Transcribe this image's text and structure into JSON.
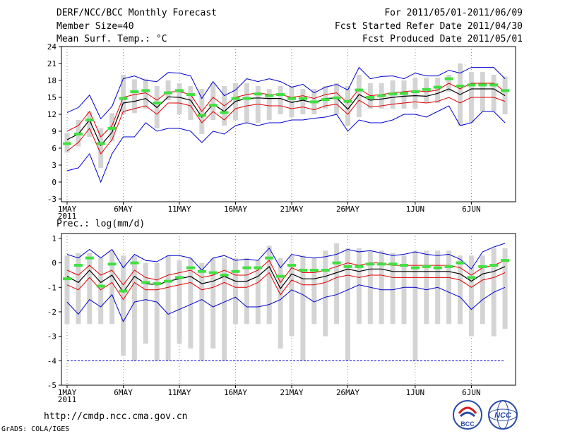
{
  "header": {
    "title": "DERF/NCC/BCC Monthly Forecast",
    "member_size": "Member Size=40",
    "variable": "Mean Surf. Temp.: °C",
    "period": "For 2011/05/01-2011/06/09",
    "refer_date": "Fcst Started Refer Date 2011/04/30",
    "produced_date": "Fcst Produced Date 2011/05/01"
  },
  "footer": {
    "url": "http://cmdp.ncc.cma.gov.cn",
    "credit": "GrADS: COLA/IGES",
    "logo_left_text": "BCC",
    "logo_right_text": "NCC"
  },
  "colors": {
    "spread": "#d4d4d4",
    "median": "#000000",
    "sigma": "#e00000",
    "minmax": "#0000d0",
    "mode": "#40e040"
  },
  "chart_data": [
    {
      "type": "line",
      "title": "Mean Surf. Temp.: °C",
      "x": [
        1,
        2,
        3,
        4,
        5,
        6,
        7,
        8,
        9,
        10,
        11,
        12,
        13,
        14,
        15,
        16,
        17,
        18,
        19,
        20,
        21,
        22,
        23,
        24,
        25,
        26,
        27,
        28,
        29,
        30,
        31,
        32,
        33,
        34,
        35,
        36,
        37,
        38,
        39,
        40
      ],
      "x_tick_labels": [
        "1MAY",
        "6MAY",
        "11MAY",
        "16MAY",
        "21MAY",
        "26MAY",
        "1JUN",
        "6JUN"
      ],
      "x_tick_positions": [
        1,
        6,
        11,
        16,
        21,
        26,
        32,
        37
      ],
      "x_year_label": "2011",
      "y_ticks": [
        "24",
        "21",
        "18",
        "15",
        "12",
        "9",
        "6",
        "3",
        "0",
        "-3"
      ],
      "y_tick_values": [
        24,
        21,
        18,
        15,
        12,
        9,
        6,
        3,
        0,
        -3
      ],
      "ylim": [
        -3.5,
        24
      ],
      "series": [
        {
          "name": "max",
          "values": [
            2,
            2.5,
            5,
            0,
            5,
            8,
            8,
            10.5,
            9,
            9.5,
            9.5,
            9,
            7,
            9,
            8.5,
            10,
            10.5,
            10,
            10.5,
            10.5,
            11,
            11,
            11.3,
            11.5,
            12,
            9,
            11,
            10.5,
            10.5,
            11,
            12,
            12,
            11.5,
            12.5,
            13.5,
            10,
            10.5,
            12.5,
            12.5,
            10.5
          ]
        },
        {
          "name": "min",
          "values": [
            12.3,
            13.2,
            15.4,
            11.2,
            13.4,
            18.3,
            18.8,
            18.0,
            17.8,
            19.4,
            19.3,
            18.8,
            14.8,
            17.8,
            15.3,
            16.3,
            18.3,
            17.8,
            18.3,
            17.8,
            16.8,
            17.3,
            15.8,
            16.8,
            17.3,
            16.3,
            20.3,
            18.3,
            18.7,
            18.8,
            18.3,
            19.3,
            18.8,
            18.8,
            19.8,
            19.3,
            20.3,
            20.3,
            20.3,
            18.3
          ]
        },
        {
          "name": "upper",
          "values": [
            9,
            10,
            12.5,
            8,
            10,
            15,
            15.5,
            15.8,
            14.5,
            16,
            16,
            15.5,
            12.5,
            15,
            13.5,
            15,
            15.5,
            15.8,
            15.5,
            15.5,
            15,
            15.3,
            14.8,
            15.5,
            15.8,
            14,
            16.5,
            15.3,
            15.5,
            15.8,
            16,
            16.2,
            16,
            16.3,
            17.5,
            16.5,
            17.5,
            17.5,
            17.5,
            16
          ]
        },
        {
          "name": "lower",
          "values": [
            5.5,
            7,
            9.5,
            5,
            7.5,
            12.5,
            13,
            13.5,
            12,
            14,
            14,
            13.5,
            10.5,
            12.5,
            11,
            13,
            13.5,
            13.8,
            13.5,
            13.5,
            13,
            13.3,
            12.8,
            13.5,
            13.8,
            12,
            14.5,
            13.3,
            13.5,
            13.8,
            14,
            14.2,
            14,
            14.3,
            15,
            14,
            15,
            15,
            15,
            14.3
          ]
        },
        {
          "name": "median",
          "values": [
            7.5,
            8.5,
            11,
            6.5,
            8.8,
            14,
            14.3,
            14.8,
            13.2,
            15.1,
            15,
            14.5,
            11.5,
            13.8,
            12.5,
            14.3,
            14.8,
            14.9,
            14.8,
            14.8,
            14.1,
            14.5,
            14,
            14.8,
            14.9,
            12.9,
            15.5,
            14.5,
            14.7,
            15,
            15.2,
            15.3,
            15.2,
            15.7,
            16.5,
            15.5,
            16.5,
            16.5,
            16.5,
            15.3
          ]
        },
        {
          "name": "mode",
          "values": [
            6.8,
            8.5,
            11,
            6.8,
            9.5,
            14.8,
            16,
            16.2,
            14,
            15.8,
            16.2,
            15.5,
            11.8,
            13.6,
            12.3,
            14.8,
            14.8,
            15.6,
            15.3,
            15.5,
            14.8,
            14.8,
            14.2,
            14.6,
            14.9,
            14.3,
            16.3,
            15,
            15.3,
            15.6,
            15.7,
            16,
            16.4,
            16.8,
            18.3,
            17,
            17.2,
            17.2,
            17.2,
            16.2
          ]
        },
        {
          "name": "bar_low",
          "values": [
            5.2,
            6.3,
            8,
            2.5,
            7.2,
            12,
            12.2,
            13,
            9.5,
            14.5,
            12,
            11,
            8.5,
            11,
            10,
            11,
            10.5,
            10.5,
            11,
            12,
            11.5,
            12,
            12,
            13,
            12,
            10,
            11.5,
            13,
            13,
            13,
            13,
            13,
            14,
            14,
            16,
            10,
            10.5,
            12.5,
            12.5,
            12
          ]
        },
        {
          "name": "bar_high",
          "values": [
            8.7,
            11,
            12.5,
            9.5,
            12.2,
            19,
            18.2,
            18.3,
            17,
            18,
            17.5,
            17,
            16.5,
            17.5,
            17,
            17.5,
            17.5,
            17,
            16.5,
            17,
            17,
            16.5,
            16.5,
            17,
            17.5,
            17,
            19,
            17.5,
            17.5,
            18,
            18,
            18.5,
            18.5,
            18.5,
            19,
            21,
            19.5,
            19.5,
            19,
            18.7
          ]
        }
      ]
    },
    {
      "type": "line",
      "title": "Prec.: log(mm/d)",
      "x": [
        1,
        2,
        3,
        4,
        5,
        6,
        7,
        8,
        9,
        10,
        11,
        12,
        13,
        14,
        15,
        16,
        17,
        18,
        19,
        20,
        21,
        22,
        23,
        24,
        25,
        26,
        27,
        28,
        29,
        30,
        31,
        32,
        33,
        34,
        35,
        36,
        37,
        38,
        39,
        40
      ],
      "x_tick_labels": [
        "1MAY",
        "6MAY",
        "11MAY",
        "16MAY",
        "21MAY",
        "26MAY",
        "1JUN",
        "6JUN"
      ],
      "x_tick_positions": [
        1,
        6,
        11,
        16,
        21,
        26,
        32,
        37
      ],
      "x_year_label": "2011",
      "y_ticks": [
        "1",
        "0",
        "-1",
        "-2",
        "-3",
        "-4",
        "-5"
      ],
      "y_tick_values": [
        1,
        0,
        -1,
        -2,
        -3,
        -4,
        -5
      ],
      "ylim": [
        -5,
        1.2
      ],
      "series": [
        {
          "name": "max",
          "values": [
            -1.6,
            -2.1,
            -1.5,
            -1.8,
            -1.3,
            -2.4,
            -1.6,
            -1.5,
            -1.6,
            -2.1,
            -1.9,
            -1.7,
            -1.5,
            -1.8,
            -1.6,
            -1.4,
            -1.8,
            -1.8,
            -1.7,
            -1.5,
            -1.1,
            -1.3,
            -1.6,
            -1.4,
            -1.3,
            -1.1,
            -0.9,
            -1.0,
            -1.1,
            -1.1,
            -1.0,
            -1.0,
            -1.1,
            -1.0,
            -1.2,
            -1.4,
            -1.9,
            -1.5,
            -1.2,
            -1.0
          ]
        },
        {
          "name": "min",
          "values": [
            0.35,
            0.2,
            0.55,
            0.2,
            0.55,
            -0.2,
            0.35,
            0.1,
            0.05,
            0.3,
            0.3,
            0.2,
            -0.3,
            0.2,
            0.3,
            0.1,
            0.15,
            0.1,
            0.6,
            -0.2,
            0.35,
            0.25,
            0.2,
            0.25,
            0.35,
            0.55,
            0.45,
            0.5,
            0.4,
            0.3,
            0.35,
            0.45,
            0.35,
            0.3,
            0.35,
            0.15,
            -0.25,
            0.45,
            0.65,
            0.8
          ]
        },
        {
          "name": "upper",
          "values": [
            -0.3,
            -0.5,
            -0.1,
            -0.5,
            -0.3,
            -0.9,
            -0.3,
            -0.6,
            -0.7,
            -0.5,
            -0.4,
            -0.3,
            -0.6,
            -0.5,
            -0.3,
            -0.5,
            -0.5,
            -0.3,
            0.1,
            -0.8,
            -0.2,
            -0.4,
            -0.4,
            -0.3,
            -0.15,
            0.0,
            -0.1,
            0.0,
            0.0,
            -0.1,
            -0.1,
            -0.1,
            -0.1,
            -0.1,
            -0.1,
            -0.2,
            -0.5,
            -0.2,
            -0.1,
            0.1
          ]
        },
        {
          "name": "lower",
          "values": [
            -0.9,
            -1.1,
            -0.6,
            -1.1,
            -0.8,
            -1.5,
            -0.8,
            -1.1,
            -1.1,
            -1.0,
            -0.9,
            -0.8,
            -1.1,
            -1.0,
            -0.8,
            -1.0,
            -1.0,
            -0.8,
            -0.4,
            -1.3,
            -0.7,
            -0.9,
            -0.9,
            -0.8,
            -0.6,
            -0.5,
            -0.6,
            -0.5,
            -0.5,
            -0.6,
            -0.6,
            -0.6,
            -0.6,
            -0.6,
            -0.6,
            -0.7,
            -1.0,
            -0.7,
            -0.6,
            -0.4
          ]
        },
        {
          "name": "median",
          "values": [
            -0.55,
            -0.8,
            -0.3,
            -0.8,
            -0.5,
            -1.2,
            -0.55,
            -0.85,
            -0.9,
            -0.75,
            -0.65,
            -0.55,
            -0.85,
            -0.75,
            -0.55,
            -0.75,
            -0.75,
            -0.55,
            -0.15,
            -1.05,
            -0.45,
            -0.65,
            -0.65,
            -0.55,
            -0.4,
            -0.25,
            -0.35,
            -0.25,
            -0.25,
            -0.35,
            -0.35,
            -0.35,
            -0.35,
            -0.35,
            -0.35,
            -0.45,
            -0.75,
            -0.45,
            -0.35,
            -0.15
          ]
        },
        {
          "name": "mode",
          "values": [
            -0.65,
            -0.1,
            0.2,
            -0.95,
            -0.05,
            -1.15,
            0.0,
            -0.8,
            -0.85,
            -0.75,
            -0.6,
            -0.2,
            -0.35,
            -0.4,
            -0.5,
            -0.35,
            -0.2,
            -0.2,
            0.2,
            -0.55,
            -0.1,
            -0.3,
            -0.3,
            -0.3,
            0.0,
            -0.15,
            -0.15,
            -0.05,
            -0.05,
            -0.05,
            -0.1,
            -0.2,
            -0.15,
            -0.2,
            -0.15,
            0.0,
            -0.6,
            -0.15,
            -0.1,
            0.1
          ]
        },
        {
          "name": "bar_low",
          "values": [
            -2.5,
            -2.5,
            -2.5,
            -2.5,
            -2.5,
            -3.8,
            -4,
            -3.3,
            -4,
            -4,
            -3.3,
            -3.5,
            -4,
            -3.5,
            -4,
            -2.5,
            -2.5,
            -2.5,
            -2.5,
            -3.5,
            -3,
            -4,
            -2.5,
            -3,
            -2.5,
            -4,
            -2.5,
            -2.5,
            -2.5,
            -2.5,
            -2.5,
            -4,
            -2.5,
            -2.5,
            -2.5,
            -2.5,
            -3,
            -2.5,
            -3,
            -2.7
          ]
        },
        {
          "name": "bar_high",
          "values": [
            0.3,
            0.4,
            0.4,
            0.2,
            0.5,
            0.3,
            0.3,
            0.0,
            0.0,
            0.3,
            0.1,
            0.2,
            0.0,
            0.2,
            0.2,
            0.2,
            0.2,
            0.1,
            0.7,
            0.2,
            0.3,
            0.3,
            0.2,
            0.5,
            0.8,
            0.6,
            0.6,
            0.5,
            0.5,
            0.4,
            0.3,
            0.5,
            0.5,
            0.5,
            0.5,
            0.3,
            0.3,
            0.3,
            0.6,
            0.6
          ]
        },
        {
          "name": "reference",
          "values": [
            -4,
            -4,
            -4,
            -4,
            -4,
            -4,
            -4,
            -4,
            -4,
            -4,
            -4,
            -4,
            -4,
            -4,
            -4,
            -4,
            -4,
            -4,
            -4,
            -4,
            -4,
            -4,
            -4,
            -4,
            -4,
            -4,
            -4,
            -4,
            -4,
            -4,
            -4,
            -4,
            -4,
            -4,
            -4,
            -4,
            -4,
            -4,
            -4,
            -4
          ]
        }
      ]
    }
  ]
}
